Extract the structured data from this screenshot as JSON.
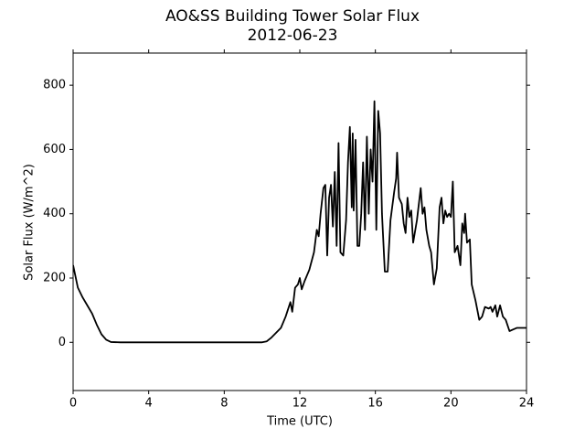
{
  "chart_data": {
    "type": "line",
    "title": "AO&SS Building Tower Solar Flux",
    "subtitle": "2012-06-23",
    "x_label": "Time (UTC)",
    "y_label": "Solar Flux (W/m^2)",
    "xlim": [
      0,
      24
    ],
    "xticks": [
      0,
      4,
      8,
      12,
      16,
      20,
      24
    ],
    "ylim": [
      -150,
      900
    ],
    "yticks": [
      0,
      200,
      400,
      600,
      800
    ],
    "grid": false,
    "series": [
      {
        "name": "Solar Flux",
        "color": "#000000",
        "x": [
          0,
          0.25,
          0.5,
          0.75,
          1.0,
          1.25,
          1.5,
          1.75,
          2.0,
          2.5,
          5,
          7.5,
          10,
          10.25,
          10.5,
          10.75,
          11,
          11.25,
          11.5,
          11.6,
          11.75,
          11.9,
          12,
          12.1,
          12.25,
          12.5,
          12.75,
          12.9,
          13.0,
          13.1,
          13.25,
          13.35,
          13.45,
          13.55,
          13.65,
          13.75,
          13.85,
          13.95,
          14.05,
          14.15,
          14.3,
          14.45,
          14.55,
          14.65,
          14.75,
          14.8,
          14.85,
          14.95,
          15.05,
          15.15,
          15.25,
          15.35,
          15.45,
          15.55,
          15.65,
          15.75,
          15.85,
          15.95,
          16.05,
          16.15,
          16.25,
          16.35,
          16.5,
          16.65,
          16.8,
          17.0,
          17.1,
          17.15,
          17.25,
          17.4,
          17.5,
          17.6,
          17.7,
          17.8,
          17.9,
          18.0,
          18.2,
          18.4,
          18.5,
          18.6,
          18.7,
          18.85,
          18.95,
          19.1,
          19.25,
          19.4,
          19.5,
          19.6,
          19.7,
          19.8,
          19.9,
          20.0,
          20.1,
          20.2,
          20.35,
          20.5,
          20.6,
          20.7,
          20.75,
          20.85,
          21.0,
          21.1,
          21.3,
          21.5,
          21.65,
          21.8,
          22.0,
          22.1,
          22.2,
          22.35,
          22.45,
          22.6,
          22.75,
          22.9,
          23.1,
          23.3,
          23.5,
          24
        ],
        "values": [
          240,
          170,
          140,
          115,
          90,
          55,
          25,
          8,
          1,
          0,
          0,
          0,
          0,
          3,
          15,
          30,
          45,
          80,
          125,
          95,
          170,
          180,
          200,
          165,
          190,
          225,
          280,
          350,
          330,
          400,
          480,
          490,
          270,
          450,
          490,
          360,
          530,
          300,
          620,
          280,
          270,
          380,
          560,
          670,
          420,
          650,
          410,
          630,
          300,
          300,
          400,
          560,
          350,
          640,
          400,
          600,
          500,
          750,
          350,
          720,
          650,
          400,
          220,
          220,
          380,
          470,
          510,
          590,
          450,
          430,
          370,
          340,
          450,
          390,
          410,
          310,
          380,
          480,
          400,
          420,
          350,
          300,
          280,
          180,
          230,
          420,
          450,
          370,
          410,
          390,
          400,
          390,
          500,
          280,
          300,
          240,
          370,
          340,
          400,
          310,
          320,
          180,
          130,
          70,
          80,
          110,
          105,
          110,
          95,
          115,
          80,
          115,
          80,
          70,
          35,
          40,
          45,
          45
        ]
      }
    ]
  }
}
